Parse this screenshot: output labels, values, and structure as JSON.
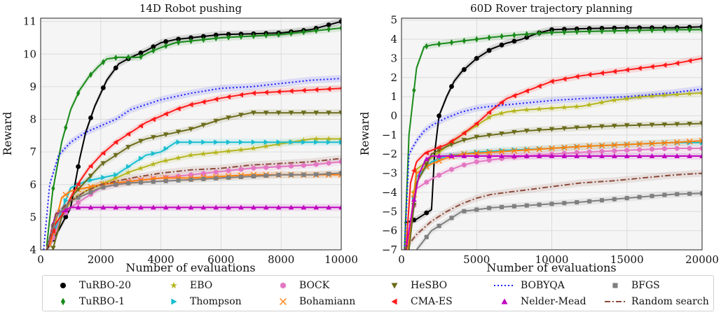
{
  "chart_data": [
    {
      "type": "line",
      "title": "14D Robot pushing",
      "xlabel": "Number of evaluations",
      "ylabel": "Reward",
      "xlim": [
        0,
        10000
      ],
      "ylim": [
        4,
        11.1
      ],
      "xticks": [
        "0",
        "2000",
        "4000",
        "6000",
        "8000",
        "10000"
      ],
      "yticks": [
        "4",
        "5",
        "6",
        "7",
        "8",
        "9",
        "10",
        "11"
      ],
      "grid": true,
      "series": [
        {
          "name": "TuRBO-20",
          "x": [
            200,
            600,
            1000,
            1300,
            1500,
            1800,
            2200,
            2600,
            3000,
            3500,
            4000,
            4500,
            5000,
            6000,
            7000,
            8000,
            9000,
            10000
          ],
          "y": [
            4.0,
            4.6,
            5.3,
            6.8,
            7.6,
            8.4,
            9.2,
            9.7,
            9.9,
            10.1,
            10.35,
            10.45,
            10.5,
            10.6,
            10.62,
            10.65,
            10.75,
            11.0
          ]
        },
        {
          "name": "TuRBO-1",
          "x": [
            200,
            400,
            700,
            1000,
            1300,
            1600,
            1900,
            2200,
            2600,
            3000,
            3300,
            3600,
            4000,
            4500,
            5000,
            6000,
            7000,
            8000,
            9000,
            10000
          ],
          "y": [
            4.1,
            5.8,
            7.3,
            8.3,
            8.9,
            9.3,
            9.6,
            9.85,
            9.9,
            9.9,
            9.9,
            10.05,
            10.2,
            10.35,
            10.4,
            10.5,
            10.55,
            10.6,
            10.7,
            10.8
          ]
        },
        {
          "name": "EBO",
          "x": [
            300,
            700,
            1000,
            1500,
            2000,
            2500,
            3000,
            4000,
            5000,
            6000,
            7000,
            8000,
            9000,
            10000
          ],
          "y": [
            4.1,
            5.0,
            5.5,
            5.8,
            6.0,
            6.2,
            6.4,
            6.7,
            6.9,
            7.0,
            7.1,
            7.25,
            7.4,
            7.4
          ]
        },
        {
          "name": "Thompson",
          "x": [
            300,
            700,
            1000,
            1500,
            2000,
            2500,
            3000,
            3500,
            4000,
            4500,
            5000,
            6000,
            7000,
            8000,
            9000,
            10000
          ],
          "y": [
            4.1,
            5.2,
            5.9,
            6.1,
            6.2,
            6.3,
            6.6,
            6.9,
            7.0,
            7.3,
            7.3,
            7.3,
            7.3,
            7.3,
            7.3,
            7.3
          ]
        },
        {
          "name": "BOCK",
          "x": [
            300,
            700,
            1000,
            1500,
            2000,
            3000,
            4000,
            5000,
            6000,
            7000,
            8000,
            9000,
            10000
          ],
          "y": [
            4.1,
            5.0,
            5.3,
            5.6,
            5.9,
            6.1,
            6.2,
            6.3,
            6.4,
            6.5,
            6.55,
            6.6,
            6.7
          ]
        },
        {
          "name": "Bohamiann",
          "x": [
            300,
            700,
            1000,
            1500,
            2000,
            3000,
            4000,
            5000,
            6000,
            7000,
            8000,
            9000,
            10000
          ],
          "y": [
            4.1,
            5.6,
            5.8,
            5.9,
            6.0,
            6.1,
            6.2,
            6.2,
            6.25,
            6.3,
            6.3,
            6.3,
            6.3
          ]
        },
        {
          "name": "HeSBO",
          "x": [
            400,
            700,
            1000,
            1500,
            2000,
            2500,
            3000,
            3500,
            4000,
            4500,
            5000,
            6000,
            7000,
            8000,
            9000,
            10000
          ],
          "y": [
            4.0,
            5.0,
            5.6,
            6.1,
            6.6,
            6.9,
            7.2,
            7.4,
            7.5,
            7.6,
            7.7,
            8.0,
            8.2,
            8.2,
            8.2,
            8.2
          ]
        },
        {
          "name": "CMA-ES",
          "x": [
            200,
            500,
            800,
            1000,
            1300,
            1600,
            2000,
            2500,
            3000,
            3500,
            4000,
            4500,
            5000,
            6000,
            7000,
            8000,
            9000,
            10000
          ],
          "y": [
            4.0,
            4.8,
            5.2,
            5.6,
            6.1,
            6.5,
            6.9,
            7.3,
            7.6,
            7.9,
            8.1,
            8.3,
            8.45,
            8.65,
            8.8,
            8.85,
            8.9,
            8.95
          ]
        },
        {
          "name": "Nelder-Mead",
          "x": [
            200,
            500,
            800,
            1000,
            1500,
            2000,
            3000,
            4000,
            5000,
            6000,
            7000,
            8000,
            9000,
            10000
          ],
          "y": [
            4.0,
            5.1,
            5.2,
            5.3,
            5.3,
            5.3,
            5.3,
            5.3,
            5.3,
            5.3,
            5.3,
            5.3,
            5.3,
            5.3
          ]
        },
        {
          "name": "BOBYQA",
          "x": [
            100,
            300,
            600,
            1000,
            1500,
            2000,
            2500,
            3000,
            4000,
            5000,
            6000,
            7000,
            8000,
            9000,
            10000
          ],
          "y": [
            4.0,
            6.0,
            6.9,
            7.3,
            7.6,
            7.8,
            8.0,
            8.3,
            8.6,
            8.8,
            8.95,
            9.0,
            9.1,
            9.2,
            9.25
          ]
        },
        {
          "name": "BFGS",
          "x": [
            200,
            500,
            1000,
            1500,
            2000,
            2500,
            3000,
            4000,
            5000,
            6000,
            7000,
            8000,
            9000,
            10000
          ],
          "y": [
            4.0,
            5.0,
            5.5,
            5.7,
            5.9,
            6.0,
            6.05,
            6.1,
            6.15,
            6.2,
            6.25,
            6.3,
            6.3,
            6.35
          ]
        },
        {
          "name": "Random search",
          "x": [
            200,
            500,
            1000,
            1500,
            2000,
            3000,
            4000,
            5000,
            6000,
            7000,
            8000,
            9000,
            10000
          ],
          "y": [
            4.0,
            5.1,
            5.5,
            5.8,
            6.0,
            6.2,
            6.35,
            6.45,
            6.5,
            6.6,
            6.65,
            6.7,
            6.8
          ]
        }
      ]
    },
    {
      "type": "line",
      "title": "60D Rover trajectory planning",
      "xlabel": "Number of evaluations",
      "ylabel": "Reward",
      "xlim": [
        0,
        20000
      ],
      "ylim": [
        -7,
        5.1
      ],
      "xticks": [
        "0",
        "5000",
        "10000",
        "15000",
        "20000"
      ],
      "yticks": [
        "−7",
        "−6",
        "−5",
        "−4",
        "−3",
        "−2",
        "−1",
        "0",
        "1",
        "2",
        "3",
        "4",
        "5"
      ],
      "grid": true,
      "series": [
        {
          "name": "TuRBO-20",
          "x": [
            200,
            1000,
            2000,
            2200,
            2500,
            3000,
            3500,
            4000,
            5000,
            6000,
            7000,
            8000,
            9000,
            10000,
            12000,
            15000,
            18000,
            20000
          ],
          "y": [
            -5.6,
            -5.4,
            -4.9,
            -2.0,
            0.0,
            1.0,
            1.8,
            2.3,
            3.0,
            3.5,
            3.8,
            4.0,
            4.3,
            4.5,
            4.55,
            4.6,
            4.6,
            4.65
          ]
        },
        {
          "name": "TuRBO-1",
          "x": [
            200,
            500,
            1000,
            1500,
            2000,
            2500,
            3000,
            4000,
            5000,
            6000,
            8000,
            10000,
            12000,
            15000,
            18000,
            20000
          ],
          "y": [
            -7.0,
            -1.0,
            2.5,
            3.6,
            3.7,
            3.75,
            3.8,
            3.9,
            4.0,
            4.1,
            4.25,
            4.35,
            4.4,
            4.45,
            4.5,
            4.5
          ]
        },
        {
          "name": "EBO",
          "x": [
            400,
            1000,
            2000,
            3000,
            4000,
            5000,
            6000,
            7000,
            8000,
            10000,
            12000,
            14000,
            16000,
            18000,
            20000
          ],
          "y": [
            -7.0,
            -2.8,
            -2.2,
            -1.6,
            -1.0,
            -0.5,
            0.0,
            0.2,
            0.3,
            0.4,
            0.5,
            0.8,
            1.0,
            1.1,
            1.2
          ]
        },
        {
          "name": "Thompson",
          "x": [
            400,
            1000,
            1500,
            2000,
            3000,
            5000,
            7000,
            10000,
            12000,
            15000,
            18000,
            20000
          ],
          "y": [
            -7.0,
            -3.2,
            -2.8,
            -2.4,
            -2.1,
            -1.9,
            -1.8,
            -1.7,
            -1.6,
            -1.5,
            -1.4,
            -1.4
          ]
        },
        {
          "name": "BOCK",
          "x": [
            400,
            1000,
            2000,
            3000,
            4000,
            5000,
            7000,
            10000,
            12000,
            15000,
            18000,
            20000
          ],
          "y": [
            -7.0,
            -3.8,
            -3.3,
            -2.9,
            -2.6,
            -2.4,
            -2.2,
            -2.0,
            -1.9,
            -1.8,
            -1.7,
            -1.7
          ]
        },
        {
          "name": "Bohamiann",
          "x": [
            400,
            1000,
            2000,
            3000,
            4000,
            6000,
            8000,
            10000,
            12000,
            15000,
            18000,
            20000
          ],
          "y": [
            -7.0,
            -3.0,
            -2.5,
            -2.2,
            -2.0,
            -1.9,
            -1.8,
            -1.7,
            -1.6,
            -1.5,
            -1.4,
            -1.3
          ]
        },
        {
          "name": "HeSBO",
          "x": [
            500,
            1000,
            1500,
            2000,
            3000,
            4000,
            5000,
            6000,
            7000,
            8000,
            10000,
            12000,
            15000,
            18000,
            20000
          ],
          "y": [
            -7.0,
            -3.5,
            -2.8,
            -2.0,
            -1.6,
            -1.3,
            -1.1,
            -1.0,
            -0.9,
            -0.8,
            -0.7,
            -0.6,
            -0.5,
            -0.45,
            -0.4
          ]
        },
        {
          "name": "CMA-ES",
          "x": [
            300,
            600,
            1000,
            1500,
            2000,
            3000,
            4000,
            5000,
            6000,
            7000,
            8000,
            9000,
            10000,
            12000,
            14000,
            16000,
            18000,
            20000
          ],
          "y": [
            -7.0,
            -3.5,
            -2.4,
            -2.0,
            -1.8,
            -1.5,
            -1.0,
            -0.4,
            0.3,
            0.9,
            1.2,
            1.5,
            1.8,
            2.1,
            2.3,
            2.5,
            2.7,
            3.0
          ]
        },
        {
          "name": "Nelder-Mead",
          "x": [
            300,
            800,
            1200,
            1600,
            2000,
            3000,
            4000,
            6000,
            8000,
            10000,
            12000,
            15000,
            18000,
            20000
          ],
          "y": [
            -7.0,
            -4.5,
            -3.0,
            -2.3,
            -2.1,
            -2.1,
            -2.1,
            -2.1,
            -2.1,
            -2.1,
            -2.1,
            -2.1,
            -2.1,
            -2.1
          ]
        },
        {
          "name": "BOBYQA",
          "x": [
            200,
            500,
            1000,
            1500,
            2000,
            3000,
            4000,
            5000,
            6000,
            8000,
            10000,
            12000,
            15000,
            18000,
            20000
          ],
          "y": [
            -7.0,
            -2.0,
            -1.3,
            -0.8,
            -0.5,
            -0.1,
            0.2,
            0.4,
            0.5,
            0.65,
            0.8,
            0.9,
            1.0,
            1.2,
            1.4
          ]
        },
        {
          "name": "BFGS",
          "x": [
            1000,
            1500,
            2000,
            3000,
            4000,
            5000,
            6000,
            8000,
            10000,
            12000,
            15000,
            18000,
            20000
          ],
          "y": [
            -7.0,
            -6.5,
            -6.0,
            -5.5,
            -5.0,
            -4.9,
            -4.8,
            -4.7,
            -4.6,
            -4.5,
            -4.3,
            -4.1,
            -4.05
          ]
        },
        {
          "name": "Random search",
          "x": [
            200,
            1000,
            2000,
            3000,
            4000,
            5000,
            6000,
            8000,
            10000,
            12000,
            14000,
            16000,
            18000,
            20000
          ],
          "y": [
            -7.0,
            -6.2,
            -5.5,
            -5.0,
            -4.6,
            -4.3,
            -4.1,
            -3.9,
            -3.7,
            -3.5,
            -3.4,
            -3.25,
            -3.1,
            -3.0
          ]
        }
      ]
    }
  ],
  "legend": {
    "placement": "bottom",
    "items": [
      {
        "label": "TuRBO-20",
        "color": "#000000",
        "marker": "circle",
        "dash": "solid"
      },
      {
        "label": "EBO",
        "color": "#b5b51e",
        "marker": "star",
        "dash": "solid"
      },
      {
        "label": "BOCK",
        "color": "#e377c2",
        "marker": "hexagon",
        "dash": "solid"
      },
      {
        "label": "HeSBO",
        "color": "#6b6b1b",
        "marker": "triangle-down",
        "dash": "solid"
      },
      {
        "label": "BOBYQA",
        "color": "#1f1fff",
        "marker": "none",
        "dash": "dotted"
      },
      {
        "label": "BFGS",
        "color": "#7f7f7f",
        "marker": "square",
        "dash": "solid"
      },
      {
        "label": "TuRBO-1",
        "color": "#1a8a1a",
        "marker": "diamond",
        "dash": "solid"
      },
      {
        "label": "Thompson",
        "color": "#17becf",
        "marker": "triangle-right",
        "dash": "solid"
      },
      {
        "label": "Bohamiann",
        "color": "#ff7f0e",
        "marker": "x",
        "dash": "solid"
      },
      {
        "label": "CMA-ES",
        "color": "#ff1a1a",
        "marker": "triangle-left",
        "dash": "solid"
      },
      {
        "label": "Nelder-Mead",
        "color": "#c000c0",
        "marker": "triangle-up",
        "dash": "solid"
      },
      {
        "label": "Random search",
        "color": "#8c4a3a",
        "marker": "none",
        "dash": "dashdot"
      }
    ]
  }
}
